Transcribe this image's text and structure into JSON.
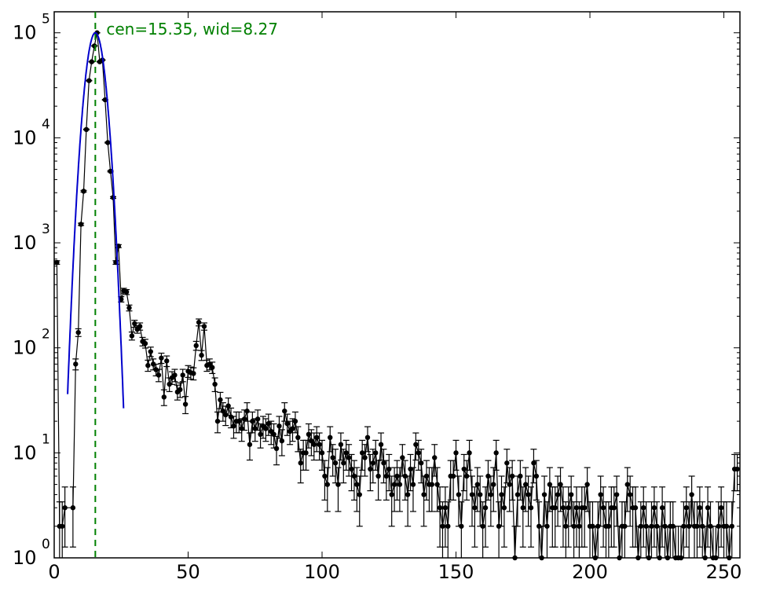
{
  "chart_data": {
    "type": "scatter",
    "xlim": [
      0,
      256
    ],
    "ylim_log10": [
      0,
      5.2
    ],
    "y_scale": "log",
    "x_ticks": [
      "0",
      "50",
      "100",
      "150",
      "200",
      "250"
    ],
    "y_ticks": [
      {
        "base": "10",
        "exp": "0"
      },
      {
        "base": "10",
        "exp": "1"
      },
      {
        "base": "10",
        "exp": "2"
      },
      {
        "base": "10",
        "exp": "3"
      },
      {
        "base": "10",
        "exp": "4"
      },
      {
        "base": "10",
        "exp": "5"
      }
    ],
    "grid": false,
    "annotation": {
      "text": "cen=15.35, wid=8.27",
      "x": 15.35,
      "color": "#008000"
    },
    "fit": {
      "type": "gaussian",
      "center": 15.35,
      "sigma": 2.6,
      "peak": 100000,
      "color": "#0000cc"
    },
    "data_color": "#000000",
    "points": [
      [
        1,
        650
      ],
      [
        2,
        2
      ],
      [
        3,
        2
      ],
      [
        4,
        3
      ],
      [
        7,
        3
      ],
      [
        8,
        70
      ],
      [
        9,
        140
      ],
      [
        10,
        1500
      ],
      [
        11,
        3100
      ],
      [
        12,
        12000
      ],
      [
        13,
        35000
      ],
      [
        14,
        53000
      ],
      [
        15,
        75000
      ],
      [
        16,
        100000
      ],
      [
        17,
        53000
      ],
      [
        18,
        55000
      ],
      [
        19,
        23000
      ],
      [
        20,
        9000
      ],
      [
        21,
        4800
      ],
      [
        22,
        2700
      ],
      [
        23,
        650
      ],
      [
        24,
        930
      ],
      [
        25,
        290
      ],
      [
        26,
        350
      ],
      [
        27,
        340
      ],
      [
        28,
        240
      ],
      [
        29,
        130
      ],
      [
        30,
        170
      ],
      [
        31,
        150
      ],
      [
        32,
        160
      ],
      [
        33,
        115
      ],
      [
        34,
        110
      ],
      [
        35,
        68
      ],
      [
        36,
        92
      ],
      [
        37,
        70
      ],
      [
        38,
        62
      ],
      [
        39,
        55
      ],
      [
        40,
        80
      ],
      [
        41,
        34
      ],
      [
        42,
        75
      ],
      [
        43,
        45
      ],
      [
        44,
        52
      ],
      [
        45,
        55
      ],
      [
        46,
        38
      ],
      [
        47,
        40
      ],
      [
        48,
        55
      ],
      [
        49,
        29
      ],
      [
        50,
        60
      ],
      [
        51,
        58
      ],
      [
        52,
        57
      ],
      [
        53,
        105
      ],
      [
        54,
        175
      ],
      [
        55,
        85
      ],
      [
        56,
        160
      ],
      [
        57,
        68
      ],
      [
        58,
        70
      ],
      [
        59,
        65
      ],
      [
        60,
        45
      ],
      [
        61,
        20
      ],
      [
        62,
        32
      ],
      [
        63,
        25
      ],
      [
        64,
        23
      ],
      [
        65,
        28
      ],
      [
        66,
        22
      ],
      [
        67,
        18
      ],
      [
        68,
        20
      ],
      [
        69,
        20
      ],
      [
        70,
        17
      ],
      [
        71,
        21
      ],
      [
        72,
        25
      ],
      [
        73,
        12
      ],
      [
        74,
        20
      ],
      [
        75,
        17
      ],
      [
        76,
        21
      ],
      [
        77,
        15
      ],
      [
        78,
        18
      ],
      [
        79,
        17
      ],
      [
        80,
        19
      ],
      [
        81,
        16
      ],
      [
        82,
        15
      ],
      [
        83,
        11
      ],
      [
        84,
        18
      ],
      [
        85,
        13
      ],
      [
        86,
        25
      ],
      [
        87,
        19
      ],
      [
        88,
        16
      ],
      [
        89,
        17
      ],
      [
        90,
        20
      ],
      [
        91,
        14
      ],
      [
        92,
        8
      ],
      [
        93,
        10
      ],
      [
        94,
        10
      ],
      [
        95,
        15
      ],
      [
        96,
        13
      ],
      [
        97,
        12
      ],
      [
        98,
        14
      ],
      [
        99,
        12
      ],
      [
        100,
        10
      ],
      [
        101,
        6
      ],
      [
        102,
        5
      ],
      [
        103,
        14
      ],
      [
        104,
        9
      ],
      [
        105,
        8
      ],
      [
        106,
        5
      ],
      [
        107,
        12
      ],
      [
        108,
        8
      ],
      [
        109,
        10
      ],
      [
        110,
        9
      ],
      [
        111,
        7
      ],
      [
        112,
        6
      ],
      [
        113,
        5
      ],
      [
        114,
        4
      ],
      [
        115,
        10
      ],
      [
        116,
        9
      ],
      [
        117,
        14
      ],
      [
        118,
        7
      ],
      [
        119,
        8
      ],
      [
        120,
        10
      ],
      [
        121,
        6
      ],
      [
        122,
        12
      ],
      [
        123,
        8
      ],
      [
        124,
        6
      ],
      [
        125,
        7
      ],
      [
        126,
        4
      ],
      [
        127,
        5
      ],
      [
        128,
        6
      ],
      [
        129,
        5
      ],
      [
        130,
        9
      ],
      [
        131,
        6
      ],
      [
        132,
        4
      ],
      [
        133,
        7
      ],
      [
        134,
        5
      ],
      [
        135,
        12
      ],
      [
        136,
        10
      ],
      [
        137,
        8
      ],
      [
        138,
        4
      ],
      [
        139,
        6
      ],
      [
        140,
        5
      ],
      [
        141,
        5
      ],
      [
        142,
        9
      ],
      [
        143,
        5
      ],
      [
        144,
        3
      ],
      [
        145,
        2
      ],
      [
        146,
        3
      ],
      [
        147,
        2
      ],
      [
        148,
        6
      ],
      [
        149,
        6
      ],
      [
        150,
        10
      ],
      [
        151,
        4
      ],
      [
        152,
        2
      ],
      [
        153,
        7
      ],
      [
        154,
        6
      ],
      [
        155,
        10
      ],
      [
        156,
        4
      ],
      [
        157,
        3
      ],
      [
        158,
        5
      ],
      [
        159,
        4
      ],
      [
        160,
        2
      ],
      [
        161,
        3
      ],
      [
        162,
        6
      ],
      [
        163,
        4
      ],
      [
        164,
        5
      ],
      [
        165,
        10
      ],
      [
        166,
        2
      ],
      [
        167,
        4
      ],
      [
        168,
        3
      ],
      [
        169,
        8
      ],
      [
        170,
        5
      ],
      [
        171,
        6
      ],
      [
        172,
        1
      ],
      [
        173,
        4
      ],
      [
        174,
        6
      ],
      [
        175,
        3
      ],
      [
        176,
        5
      ],
      [
        177,
        4
      ],
      [
        178,
        3
      ],
      [
        179,
        8
      ],
      [
        180,
        6
      ],
      [
        181,
        2
      ],
      [
        182,
        1
      ],
      [
        183,
        4
      ],
      [
        184,
        2
      ],
      [
        185,
        5
      ],
      [
        186,
        3
      ],
      [
        187,
        3
      ],
      [
        188,
        4
      ],
      [
        189,
        5
      ],
      [
        190,
        3
      ],
      [
        191,
        2
      ],
      [
        192,
        3
      ],
      [
        193,
        4
      ],
      [
        194,
        2
      ],
      [
        195,
        3
      ],
      [
        196,
        2
      ],
      [
        197,
        3
      ],
      [
        198,
        3
      ],
      [
        199,
        5
      ],
      [
        200,
        2
      ],
      [
        201,
        2
      ],
      [
        202,
        1
      ],
      [
        203,
        2
      ],
      [
        204,
        4
      ],
      [
        205,
        3
      ],
      [
        206,
        2
      ],
      [
        207,
        2
      ],
      [
        208,
        3
      ],
      [
        209,
        3
      ],
      [
        210,
        4
      ],
      [
        211,
        1
      ],
      [
        212,
        2
      ],
      [
        213,
        2
      ],
      [
        214,
        5
      ],
      [
        215,
        4
      ],
      [
        216,
        3
      ],
      [
        217,
        3
      ],
      [
        218,
        1
      ],
      [
        219,
        2
      ],
      [
        220,
        3
      ],
      [
        221,
        2
      ],
      [
        222,
        1
      ],
      [
        223,
        2
      ],
      [
        224,
        3
      ],
      [
        225,
        2
      ],
      [
        226,
        1
      ],
      [
        227,
        3
      ],
      [
        228,
        2
      ],
      [
        229,
        1
      ],
      [
        230,
        2
      ],
      [
        231,
        2
      ],
      [
        232,
        1
      ],
      [
        233,
        1
      ],
      [
        234,
        1
      ],
      [
        235,
        2
      ],
      [
        236,
        3
      ],
      [
        237,
        2
      ],
      [
        238,
        4
      ],
      [
        239,
        2
      ],
      [
        240,
        2
      ],
      [
        241,
        3
      ],
      [
        242,
        2
      ],
      [
        243,
        1
      ],
      [
        244,
        3
      ],
      [
        245,
        2
      ],
      [
        246,
        1
      ],
      [
        247,
        1
      ],
      [
        248,
        2
      ],
      [
        249,
        3
      ],
      [
        250,
        2
      ],
      [
        251,
        2
      ],
      [
        252,
        1
      ],
      [
        253,
        2
      ],
      [
        254,
        7
      ],
      [
        255,
        7
      ]
    ]
  }
}
